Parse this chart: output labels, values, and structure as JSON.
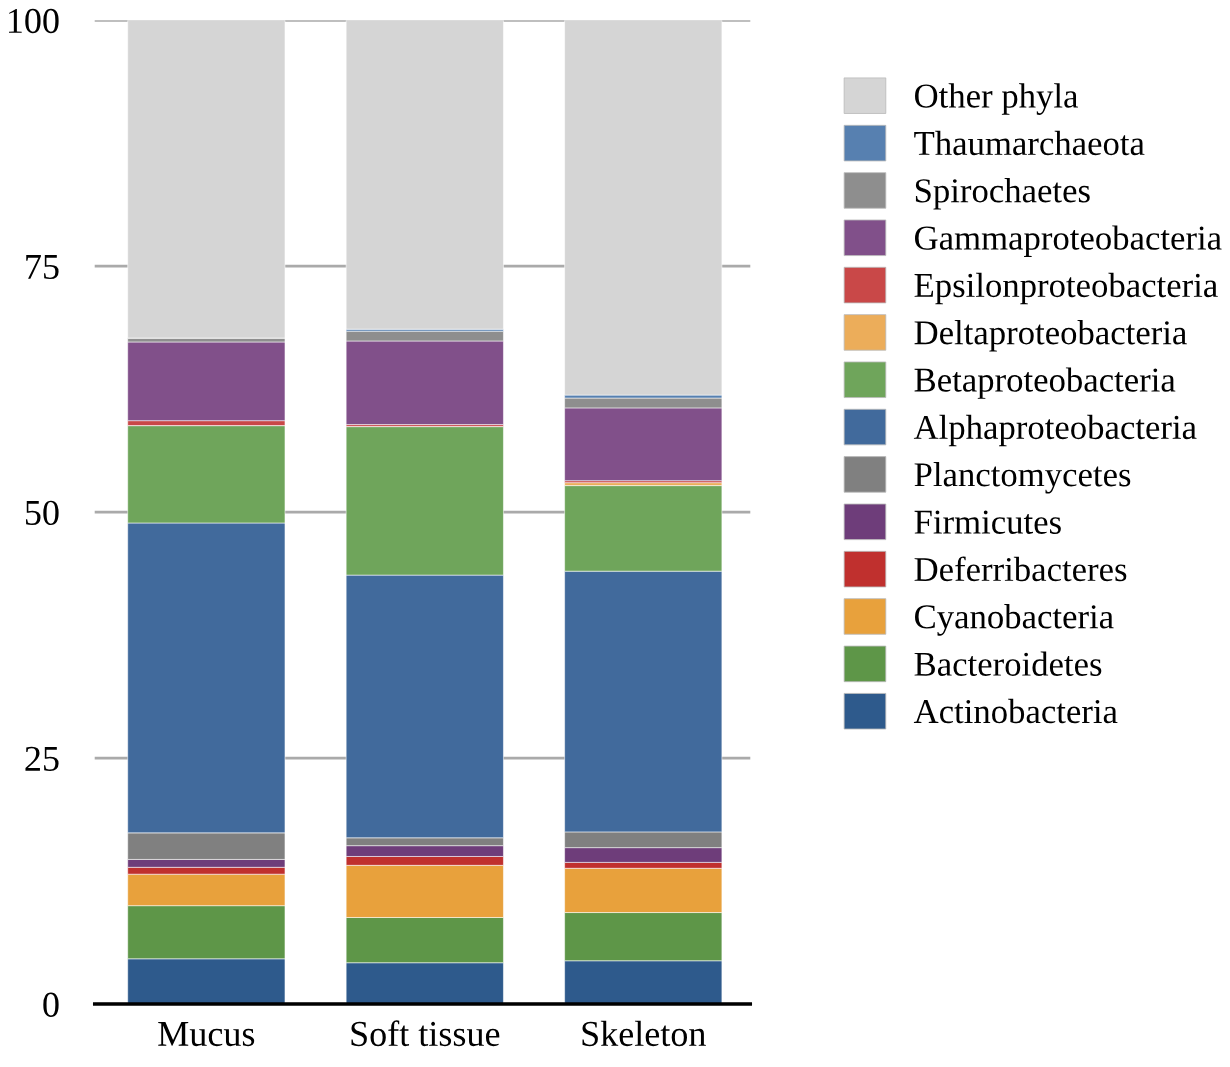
{
  "chart_data": {
    "type": "bar",
    "stacked": true,
    "categories": [
      "Mucus",
      "Soft tissue",
      "Skeleton"
    ],
    "series": [
      {
        "name": "Actinobacteria",
        "color": "#2e5a8c",
        "values": [
          4.6,
          4.2,
          4.4
        ]
      },
      {
        "name": "Bacteroidetes",
        "color": "#5e9648",
        "values": [
          5.4,
          4.6,
          4.9
        ]
      },
      {
        "name": "Cyanobacteria",
        "color": "#e8a13c",
        "values": [
          3.2,
          5.3,
          4.5
        ]
      },
      {
        "name": "Deferribacteres",
        "color": "#c0302e",
        "values": [
          0.7,
          0.9,
          0.6
        ]
      },
      {
        "name": "Firmicutes",
        "color": "#6e3d7a",
        "values": [
          0.8,
          1.1,
          1.5
        ]
      },
      {
        "name": "Planctomycetes",
        "color": "#808080",
        "values": [
          2.7,
          0.8,
          1.6
        ]
      },
      {
        "name": "Alphaproteobacteria",
        "color": "#416a9c",
        "values": [
          31.5,
          26.7,
          26.5
        ]
      },
      {
        "name": "Betaproteobacteria",
        "color": "#6fa55b",
        "values": [
          9.9,
          15.1,
          8.7
        ]
      },
      {
        "name": "Deltaproteobacteria",
        "color": "#ecad5a",
        "values": [
          0,
          0,
          0.3
        ]
      },
      {
        "name": "Epsilonproteobacteria",
        "color": "#c94848",
        "values": [
          0.5,
          0.2,
          0.2
        ]
      },
      {
        "name": "Gammaproteobacteria",
        "color": "#81508a",
        "values": [
          8.0,
          8.5,
          7.4
        ]
      },
      {
        "name": "Spirochaetes",
        "color": "#8e8e8e",
        "values": [
          0.4,
          1.0,
          1.0
        ]
      },
      {
        "name": "Thaumarchaeota",
        "color": "#5780b0",
        "values": [
          0,
          0.2,
          0.3
        ]
      },
      {
        "name": "Other phyla",
        "color": "#d5d5d5",
        "values": [
          32.3,
          31.4,
          38.1
        ]
      }
    ],
    "ylim": [
      0,
      100
    ],
    "yticks": [
      0,
      25,
      50,
      75,
      100
    ],
    "grid": "y",
    "legend": "right"
  }
}
